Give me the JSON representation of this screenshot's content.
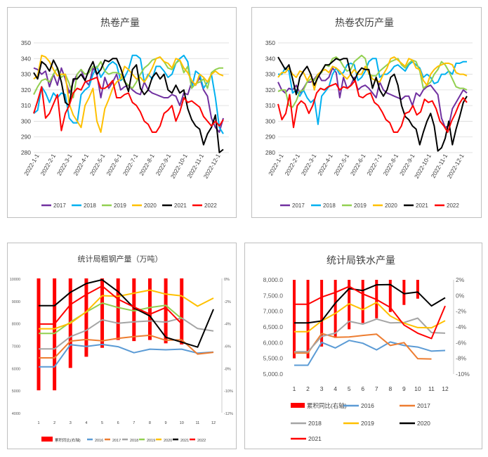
{
  "charts": {
    "hrc_output": {
      "title": "热卷产量"
    },
    "hrc_apparent": {
      "title": "热卷农历产量"
    },
    "crude_steel": {
      "title": "统计局粗钢产量（万吨）"
    },
    "pig_iron": {
      "title": "统计局铁水产量"
    }
  },
  "chart_data": [
    {
      "id": "hrc_output",
      "type": "line",
      "title": "热卷产量",
      "xlabel": "",
      "ylabel": "",
      "ylim": [
        280,
        350
      ],
      "yticks": [
        280,
        290,
        300,
        310,
        320,
        330,
        340,
        350
      ],
      "x_ticks": [
        "2022-1-1",
        "2022-2-1",
        "2022-3-1",
        "2022-4-1",
        "2022-5-1",
        "2022-6-1",
        "2022-7-1",
        "2022-8-1",
        "2022-9-1",
        "2022-10-1",
        "2022-11-1",
        "2022-12-1"
      ],
      "grid": true,
      "legend": "bottom",
      "series": [
        {
          "name": "2017",
          "color": "#7030A0",
          "values": [
            334,
            333,
            330,
            332,
            322,
            330,
            323,
            334,
            327,
            318,
            325,
            330,
            333,
            326,
            323,
            334,
            330,
            315,
            328,
            321,
            325,
            330,
            320,
            322,
            323,
            320,
            318,
            317,
            325,
            320,
            318,
            317,
            316,
            315,
            315,
            317,
            316,
            310,
            318,
            317,
            325,
            323,
            328,
            320,
            316,
            302,
            296,
            293,
            302
          ]
        },
        {
          "name": "2018",
          "color": "#00B0F0",
          "values": [
            305,
            307,
            322,
            318,
            312,
            318,
            315,
            318,
            317,
            302,
            299,
            299,
            317,
            320,
            322,
            330,
            335,
            328,
            332,
            336,
            338,
            336,
            326,
            328,
            333,
            342,
            342,
            340,
            325,
            330,
            327,
            335,
            335,
            332,
            328,
            330,
            337,
            340,
            342,
            338,
            321,
            332,
            330,
            321,
            325,
            330,
            315,
            296,
            292
          ]
        },
        {
          "name": "2019",
          "color": "#92D050",
          "values": [
            317,
            322,
            326,
            327,
            325,
            330,
            334,
            328,
            330,
            324,
            315,
            330,
            333,
            330,
            331,
            335,
            334,
            338,
            332,
            330,
            331,
            331,
            330,
            325,
            323,
            321,
            325,
            330,
            334,
            336,
            339,
            340,
            341,
            338,
            334,
            333,
            337,
            339,
            331,
            335,
            321,
            324,
            325,
            327,
            321,
            331,
            333,
            334,
            334
          ]
        },
        {
          "name": "2020",
          "color": "#FFC000",
          "values": [
            327,
            329,
            342,
            341,
            338,
            333,
            329,
            330,
            330,
            311,
            304,
            300,
            296,
            310,
            315,
            321,
            300,
            293,
            308,
            314,
            321,
            325,
            327,
            335,
            333,
            330,
            327,
            328,
            325,
            329,
            334,
            340,
            341,
            338,
            337,
            334,
            340,
            339,
            334,
            331,
            326,
            323,
            330,
            328,
            325,
            330,
            332,
            330,
            329
          ]
        },
        {
          "name": "2021",
          "color": "#000000",
          "values": [
            331,
            327,
            338,
            336,
            332,
            339,
            334,
            325,
            312,
            310,
            327,
            327,
            330,
            326,
            333,
            338,
            330,
            333,
            339,
            338,
            340,
            340,
            334,
            326,
            319,
            333,
            336,
            321,
            317,
            320,
            328,
            331,
            327,
            330,
            320,
            318,
            323,
            318,
            320,
            308,
            301,
            297,
            295,
            285,
            292,
            296,
            304,
            280,
            282
          ]
        },
        {
          "name": "2022",
          "color": "#FF0000",
          "values": [
            305,
            313,
            322,
            302,
            305,
            311,
            317,
            294,
            305,
            310,
            318,
            321,
            320,
            325,
            326,
            327,
            328,
            321,
            321,
            323,
            326,
            315,
            315,
            317,
            318,
            312,
            310,
            306,
            300,
            298,
            293,
            293,
            297,
            305,
            307,
            310,
            300,
            306,
            315,
            312,
            313,
            311,
            309,
            303,
            300,
            297,
            300,
            297,
            301
          ]
        }
      ]
    },
    {
      "id": "hrc_apparent",
      "type": "line",
      "title": "热卷农历产量",
      "xlabel": "",
      "ylabel": "",
      "ylim": [
        280,
        350
      ],
      "yticks": [
        280,
        290,
        300,
        310,
        320,
        330,
        340,
        350
      ],
      "x_ticks": [
        "2022-1-1",
        "2022-2-1",
        "2022-3-1",
        "2022-4-1",
        "2022-5-1",
        "2022-6-1",
        "2022-7-1",
        "2022-8-1",
        "2022-9-1",
        "2022-10-1",
        "2022-11-1",
        "2022-12-1"
      ],
      "grid": true,
      "legend": "bottom",
      "series": [
        {
          "name": "2017",
          "color": "#7030A0",
          "values": [
            325,
            320,
            318,
            321,
            320,
            323,
            318,
            321,
            325,
            325,
            327,
            330,
            326,
            326,
            328,
            334,
            331,
            315,
            328,
            321,
            323,
            328,
            320,
            322,
            323,
            321,
            318,
            315,
            325,
            320,
            318,
            317,
            316,
            315,
            314,
            316,
            316,
            310,
            318,
            316,
            320,
            322,
            323,
            320,
            317,
            302,
            296,
            297,
            308,
            312,
            316,
            320,
            318
          ]
        },
        {
          "name": "2018",
          "color": "#00B0F0",
          "values": [
            330,
            330,
            334,
            332,
            318,
            320,
            316,
            320,
            315,
            312,
            314,
            298,
            316,
            319,
            322,
            330,
            334,
            330,
            331,
            336,
            337,
            336,
            326,
            328,
            332,
            338,
            340,
            340,
            328,
            330,
            330,
            332,
            335,
            336,
            334,
            332,
            336,
            338,
            336,
            334,
            328,
            330,
            328,
            324,
            325,
            330,
            330,
            332,
            330,
            337,
            337,
            338,
            338
          ]
        },
        {
          "name": "2019",
          "color": "#92D050",
          "values": [
            319,
            320,
            320,
            310,
            309,
            313,
            319,
            320,
            325,
            327,
            326,
            330,
            331,
            336,
            335,
            340,
            341,
            339,
            335,
            332,
            333,
            338,
            340,
            342,
            340,
            330,
            329,
            329,
            332,
            334,
            336,
            338,
            339,
            340,
            336,
            334,
            337,
            339,
            338,
            332,
            321,
            323,
            325,
            330,
            333,
            338,
            336,
            332,
            327,
            322,
            321,
            321,
            320
          ]
        },
        {
          "name": "2020",
          "color": "#FFC000",
          "values": [
            328,
            331,
            331,
            334,
            330,
            328,
            332,
            331,
            326,
            330,
            320,
            330,
            332,
            333,
            331,
            335,
            334,
            332,
            329,
            327,
            330,
            333,
            330,
            330,
            335,
            331,
            327,
            326,
            325,
            330,
            334,
            340,
            341,
            339,
            337,
            335,
            340,
            339,
            334,
            333,
            326,
            323,
            330,
            333,
            335,
            336,
            337,
            337,
            336,
            331,
            330,
            330,
            329
          ]
        },
        {
          "name": "2021",
          "color": "#000000",
          "values": [
            341,
            337,
            333,
            336,
            327,
            317,
            328,
            332,
            335,
            330,
            323,
            328,
            332,
            336,
            336,
            338,
            340,
            339,
            340,
            340,
            330,
            326,
            331,
            334,
            333,
            333,
            321,
            328,
            320,
            316,
            320,
            328,
            330,
            323,
            310,
            303,
            301,
            297,
            295,
            285,
            293,
            300,
            305,
            297,
            281,
            283,
            289,
            300,
            285,
            295,
            303,
            312,
            316
          ]
        },
        {
          "name": "2022",
          "color": "#FF0000",
          "values": [
            311,
            301,
            305,
            317,
            296,
            310,
            313,
            311,
            305,
            310,
            318,
            321,
            320,
            322,
            323,
            324,
            320,
            322,
            321,
            323,
            326,
            316,
            315,
            317,
            318,
            312,
            310,
            306,
            301,
            299,
            293,
            293,
            297,
            305,
            306,
            310,
            304,
            306,
            314,
            312,
            313,
            308,
            300,
            297,
            293,
            300,
            305,
            311,
            315,
            312
          ]
        }
      ]
    },
    {
      "id": "crude_steel",
      "type": "line",
      "title": "统计局粗钢产量（万吨）",
      "xlabel": "",
      "ylabel": "",
      "categories": [
        "1",
        "2",
        "3",
        "4",
        "5",
        "6",
        "7",
        "8",
        "9",
        "10",
        "11",
        "12"
      ],
      "ylim": [
        4000,
        10000
      ],
      "yticks": [
        4000,
        5000,
        6000,
        7000,
        8000,
        9000,
        10000
      ],
      "y2lim": [
        -12,
        0
      ],
      "y2ticks": [
        "0%",
        "-2%",
        "-4%",
        "-6%",
        "-8%",
        "-10%",
        "-12%"
      ],
      "grid": false,
      "legend": "bottom",
      "bars": {
        "name": "累积同比(右轴)",
        "color": "#FF0000",
        "values": [
          -10,
          -10,
          -8,
          -7,
          -6.2,
          -5.5,
          -5.6,
          -5.5,
          -5.8,
          -5.9,
          null,
          null
        ]
      },
      "series": [
        {
          "name": "2016",
          "color": "#5B9BD5",
          "values": [
            6050,
            6050,
            7040,
            6960,
            7050,
            6950,
            6680,
            6840,
            6810,
            6840,
            6660,
            6710
          ]
        },
        {
          "name": "2017",
          "color": "#ED7D31",
          "values": [
            6450,
            6450,
            7200,
            7270,
            7210,
            7320,
            7400,
            7460,
            7240,
            7260,
            6620,
            6700
          ]
        },
        {
          "name": "2018",
          "color": "#A5A5A5",
          "values": [
            6850,
            6850,
            7400,
            7680,
            8150,
            8000,
            8060,
            8100,
            8050,
            8230,
            7760,
            7650
          ]
        },
        {
          "name": "2019",
          "color": "#92D050",
          "values": [
            7540,
            7540,
            8050,
            8500,
            8900,
            8700,
            8550,
            8700,
            8800,
            8200,
            null,
            null
          ]
        },
        {
          "name": "2020",
          "color": "#FFC000",
          "values": [
            7750,
            7750,
            8000,
            8510,
            9230,
            9200,
            9340,
            9480,
            9300,
            9220,
            8760,
            9120
          ]
        },
        {
          "name": "2021",
          "color": "#000000",
          "values": [
            8780,
            8780,
            9380,
            9770,
            9940,
            9410,
            8680,
            8320,
            7370,
            7150,
            6930,
            8620
          ]
        },
        {
          "name": "2022",
          "color": "#FF0000",
          "values": [
            7960,
            7960,
            8830,
            9280,
            9660,
            9070,
            8720,
            8400,
            8700,
            7970,
            null,
            null
          ]
        }
      ]
    },
    {
      "id": "pig_iron",
      "type": "line",
      "title": "统计局铁水产量",
      "xlabel": "",
      "ylabel": "",
      "categories": [
        "1",
        "2",
        "3",
        "4",
        "5",
        "6",
        "7",
        "8",
        "9",
        "10",
        "11",
        "12"
      ],
      "ylim": [
        5000,
        8000
      ],
      "yticks": [
        "5,000.0",
        "5,500.0",
        "6,000.0",
        "6,500.0",
        "7,000.0",
        "7,500.0",
        "8,000.0"
      ],
      "y2lim": [
        -10,
        2
      ],
      "y2ticks": [
        "2%",
        "0%",
        "-2%",
        "-4%",
        "-6%",
        "-8%",
        "-10%"
      ],
      "grid": false,
      "legend": "bottom",
      "bars": {
        "name": "累积同比(右轴)",
        "color": "#FF0000",
        "values": [
          -8,
          -8,
          -6.5,
          -5.4,
          -4.3,
          -3.5,
          -2.9,
          -2.1,
          -1.2,
          -0.4,
          null,
          null
        ]
      },
      "series": [
        {
          "name": "2016",
          "color": "#5B9BD5",
          "values": [
            5280,
            5280,
            6010,
            5830,
            6070,
            5980,
            5770,
            6020,
            5910,
            5860,
            5730,
            5750
          ]
        },
        {
          "name": "2017",
          "color": "#ED7D31",
          "values": [
            5670,
            5670,
            6290,
            6170,
            6180,
            6230,
            6270,
            5910,
            6000,
            5490,
            5480,
            null
          ]
        },
        {
          "name": "2018",
          "color": "#A5A5A5",
          "values": [
            5710,
            5710,
            6200,
            6300,
            6680,
            6590,
            6750,
            6630,
            6640,
            6780,
            6320,
            6300
          ]
        },
        {
          "name": "2019",
          "color": "#FFC000",
          "values": [
            6350,
            6350,
            6690,
            6930,
            7240,
            7050,
            7280,
            6850,
            6620,
            6480,
            6470,
            6700
          ]
        },
        {
          "name": "2020",
          "color": "#000000",
          "values": [
            6630,
            6630,
            6690,
            7260,
            7720,
            7660,
            7840,
            7850,
            7560,
            7610,
            7170,
            7430
          ]
        },
        {
          "name": "2021",
          "color": "#FF0000",
          "values": [
            7220,
            7220,
            7450,
            7600,
            7790,
            7550,
            7370,
            7120,
            6560,
            6300,
            6130,
            7170
          ]
        }
      ]
    }
  ]
}
